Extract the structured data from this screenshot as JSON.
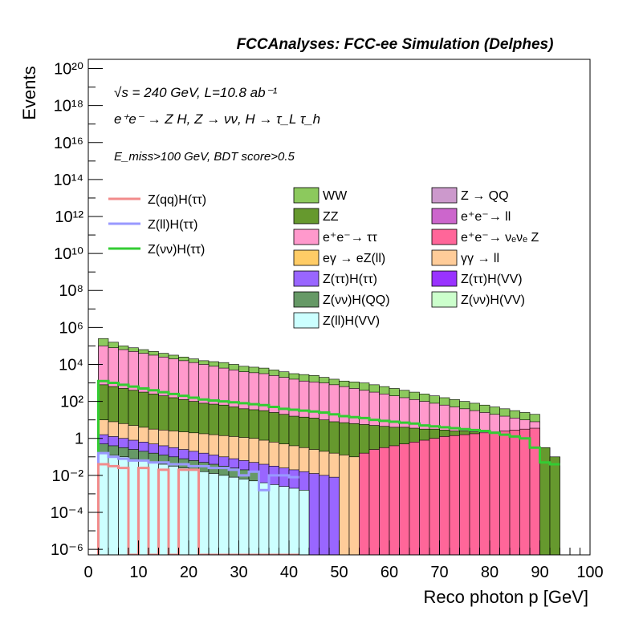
{
  "header": "FCCAnalyses: FCC-ee Simulation (Delphes)",
  "annotations": {
    "energy": "√s = 240 GeV, L=10.8 ab⁻¹",
    "process": "e⁺e⁻ → Z H, Z → νν, H → τ_L τ_h",
    "selection": "E_miss>100 GeV, BDT score>0.5"
  },
  "axes": {
    "xlabel": "Reco photon p [GeV]",
    "ylabel": "Events",
    "xticks": [
      "0",
      "10",
      "20",
      "30",
      "40",
      "50",
      "60",
      "70",
      "80",
      "90",
      "100"
    ],
    "yticks": [
      "10⁻⁶",
      "10⁻⁴",
      "10⁻²",
      "1",
      "10²",
      "10⁴",
      "10⁶",
      "10⁸",
      "10¹⁰",
      "10¹²",
      "10¹⁴",
      "10¹⁶",
      "10¹⁸",
      "10²⁰"
    ]
  },
  "legend": {
    "signals": [
      {
        "label": "Z(qq)H(ττ)",
        "color": "#f28b8b"
      },
      {
        "label": "Z(ll)H(ττ)",
        "color": "#9999ff"
      },
      {
        "label": "Z(νν)H(ττ)",
        "color": "#33cc33"
      }
    ],
    "backgrounds": [
      {
        "label": "WW",
        "color": "#8cc95d"
      },
      {
        "label": "Z → QQ",
        "color": "#cc99cc"
      },
      {
        "label": "ZZ",
        "color": "#66992e"
      },
      {
        "label": "e⁺e⁻→ ll",
        "color": "#cc66cc"
      },
      {
        "label": "e⁺e⁻→ ττ",
        "color": "#ff99cc"
      },
      {
        "label": "e⁺e⁻→ νₑνₑ Z",
        "color": "#ff6699"
      },
      {
        "label": "eγ → eZ(ll)",
        "color": "#ffcc66"
      },
      {
        "label": "γγ → ll",
        "color": "#ffcc99"
      },
      {
        "label": "Z(ττ)H(ττ)",
        "color": "#9966ff"
      },
      {
        "label": "Z(ττ)H(VV)",
        "color": "#9933ff"
      },
      {
        "label": "Z(νν)H(QQ)",
        "color": "#669966"
      },
      {
        "label": "Z(νν)H(VV)",
        "color": "#ccffcc"
      },
      {
        "label": "Z(ll)H(VV)",
        "color": "#ccffff"
      }
    ]
  },
  "chart_data": {
    "type": "stacked-histogram",
    "title": "FCCAnalyses: FCC-ee Simulation (Delphes)",
    "xlabel": "Reco photon p [GeV]",
    "ylabel": "Events",
    "xlim": [
      0,
      100
    ],
    "ylim_log10": [
      -6.3,
      20.5
    ],
    "yscale": "log",
    "bin_width": 2,
    "bin_starts": [
      2,
      4,
      6,
      8,
      10,
      12,
      14,
      16,
      18,
      20,
      22,
      24,
      26,
      28,
      30,
      32,
      34,
      36,
      38,
      40,
      42,
      44,
      46,
      48,
      50,
      52,
      54,
      56,
      58,
      60,
      62,
      64,
      66,
      68,
      70,
      72,
      74,
      76,
      78,
      80,
      82,
      84,
      86,
      88,
      90,
      92
    ],
    "stack_totals_log10": [
      5.4,
      5.2,
      5.0,
      4.9,
      4.8,
      4.7,
      4.6,
      4.5,
      4.4,
      4.3,
      4.2,
      4.15,
      4.1,
      4.0,
      3.9,
      3.85,
      3.8,
      3.7,
      3.6,
      3.5,
      3.45,
      3.4,
      3.3,
      3.2,
      3.1,
      3.05,
      3.0,
      2.9,
      2.8,
      2.7,
      2.6,
      2.5,
      2.4,
      2.3,
      2.2,
      2.1,
      2.0,
      1.9,
      1.8,
      1.7,
      1.6,
      1.5,
      1.4,
      1.3,
      -0.5,
      -1.0
    ],
    "stack_layers_log10": [
      {
        "name": "Z(ll)H(VV)",
        "values": [
          -0.8,
          -0.9,
          -1.0,
          -1.1,
          -1.2,
          -1.3,
          -1.4,
          -1.5,
          -1.6,
          -1.7,
          -1.8,
          -1.9,
          -2.0,
          -2.1,
          -2.2,
          -2.3,
          -2.4,
          -2.5,
          -2.6,
          -2.7,
          -2.8,
          null,
          null,
          null,
          null,
          null,
          null,
          null,
          null,
          null,
          null,
          null,
          null,
          null,
          null,
          null,
          null,
          null,
          null,
          null,
          null,
          null,
          null,
          null,
          null,
          null
        ]
      },
      {
        "name": "Z(νν)H(QQ)",
        "values": [
          -0.3,
          -0.4,
          -0.5,
          -0.6,
          -0.7,
          -0.8,
          -0.9,
          -1.0,
          -1.1,
          -1.2,
          -1.3,
          -1.4,
          -1.5,
          -1.6,
          -1.7,
          -1.8,
          null,
          null,
          null,
          null,
          null,
          null,
          null,
          null,
          null,
          null,
          null,
          null,
          null,
          null,
          null,
          null,
          null,
          null,
          null,
          null,
          null,
          null,
          null,
          null,
          null,
          null,
          null,
          null,
          null,
          null
        ]
      },
      {
        "name": "Z(ττ)H(ττ)",
        "values": [
          0.2,
          0.1,
          0.0,
          -0.1,
          -0.2,
          -0.3,
          -0.4,
          -0.5,
          -0.6,
          -0.7,
          -0.8,
          -0.9,
          -1.0,
          -1.1,
          -1.2,
          -1.3,
          -1.4,
          -1.5,
          -1.6,
          -1.7,
          -1.8,
          -1.9,
          -2.0,
          -2.1,
          null,
          null,
          null,
          null,
          null,
          null,
          null,
          null,
          null,
          null,
          null,
          null,
          null,
          null,
          null,
          null,
          null,
          null,
          null,
          null,
          null,
          null
        ]
      },
      {
        "name": "γγ → ll",
        "values": [
          1.0,
          0.9,
          0.8,
          0.7,
          0.6,
          0.5,
          0.45,
          0.4,
          0.35,
          0.3,
          0.25,
          0.2,
          0.15,
          0.1,
          0.05,
          0.0,
          -0.1,
          -0.2,
          -0.3,
          -0.4,
          -0.5,
          -0.6,
          -0.7,
          -0.8,
          -0.9,
          -1.0,
          null,
          null,
          null,
          null,
          null,
          null,
          null,
          null,
          null,
          null,
          null,
          null,
          null,
          null,
          null,
          null,
          null,
          null,
          null,
          null
        ]
      },
      {
        "name": "e⁺e⁻→ νₑνₑ Z",
        "values": [
          null,
          null,
          null,
          null,
          null,
          null,
          null,
          null,
          null,
          null,
          null,
          null,
          null,
          null,
          null,
          null,
          null,
          null,
          null,
          null,
          null,
          null,
          null,
          -1.6,
          -1.2,
          -1.0,
          -0.8,
          -0.6,
          -0.5,
          -0.4,
          -0.3,
          -0.2,
          -0.1,
          0.0,
          0.1,
          0.15,
          0.2,
          0.25,
          0.3,
          0.35,
          0.4,
          0.45,
          0.5,
          0.55,
          null,
          null
        ]
      },
      {
        "name": "ZZ",
        "values": [
          2.9,
          2.8,
          2.7,
          2.6,
          2.5,
          2.4,
          2.3,
          2.2,
          2.1,
          2.0,
          1.9,
          1.85,
          1.8,
          1.7,
          1.6,
          1.55,
          1.5,
          1.4,
          1.3,
          1.2,
          1.15,
          1.1,
          1.0,
          0.9,
          0.85,
          0.8,
          0.75,
          0.7,
          0.65,
          0.6,
          0.6,
          0.55,
          0.5,
          0.5,
          0.45,
          0.4,
          0.4,
          0.35,
          0.3,
          0.3,
          0.25,
          0.2,
          0.2,
          0.1,
          -0.5,
          -1.0
        ]
      },
      {
        "name": "e⁺e⁻→ ττ",
        "values": [
          5.0,
          4.9,
          4.8,
          4.7,
          4.6,
          4.5,
          4.4,
          4.3,
          4.2,
          4.1,
          4.0,
          3.9,
          3.8,
          3.7,
          3.6,
          3.55,
          3.5,
          3.4,
          3.3,
          3.2,
          3.1,
          3.05,
          3.0,
          2.9,
          2.8,
          2.7,
          2.6,
          2.5,
          2.4,
          2.3,
          2.2,
          2.1,
          2.0,
          1.9,
          1.8,
          1.7,
          1.6,
          1.5,
          1.4,
          1.3,
          1.2,
          1.1,
          1.0,
          0.9,
          null,
          null
        ]
      },
      {
        "name": "WW",
        "values": [
          5.4,
          5.2,
          5.0,
          4.9,
          4.8,
          4.7,
          4.6,
          4.5,
          4.4,
          4.3,
          4.2,
          4.15,
          4.1,
          4.0,
          3.9,
          3.85,
          3.8,
          3.7,
          3.6,
          3.5,
          3.45,
          3.4,
          3.3,
          3.2,
          3.1,
          3.05,
          3.0,
          2.9,
          2.8,
          2.7,
          2.6,
          2.5,
          2.4,
          2.3,
          2.2,
          2.1,
          2.0,
          1.9,
          1.8,
          1.7,
          1.6,
          1.5,
          1.4,
          1.3,
          -0.5,
          -1.0
        ]
      }
    ],
    "signal_lines_log10": [
      {
        "name": "Z(νν)H(ττ)",
        "color": "#33cc33",
        "values": [
          3.1,
          3.0,
          2.9,
          2.8,
          2.7,
          2.6,
          2.5,
          2.4,
          2.3,
          2.2,
          2.1,
          2.05,
          2.0,
          1.95,
          1.9,
          1.85,
          1.8,
          1.7,
          1.6,
          1.55,
          1.5,
          1.45,
          1.4,
          1.3,
          1.2,
          1.15,
          1.1,
          1.0,
          0.95,
          0.9,
          0.85,
          0.8,
          0.7,
          0.65,
          0.6,
          0.55,
          0.5,
          0.45,
          0.4,
          0.3,
          0.2,
          0.1,
          0.0,
          -0.5,
          -1.3,
          -1.4
        ]
      },
      {
        "name": "Z(ll)H(ττ)",
        "color": "#9999ff",
        "values": [
          -0.8,
          -1.0,
          -1.1,
          -1.2,
          -1.2,
          -1.3,
          -1.3,
          -1.4,
          -1.4,
          -1.5,
          -1.5,
          -1.6,
          -1.6,
          -1.7,
          -2.0,
          -1.8,
          -2.8,
          -2.0,
          -2.0,
          -2.1,
          null,
          null,
          null,
          null,
          null,
          null,
          null,
          null,
          null,
          null,
          null,
          null,
          null,
          null,
          null,
          null,
          null,
          null,
          null,
          null,
          null,
          null,
          null,
          null,
          null,
          null
        ]
      },
      {
        "name": "Z(qq)H(ττ)",
        "color": "#f28b8b",
        "values": [
          -1.4,
          -1.5,
          -1.6,
          -6.3,
          -1.6,
          -6.3,
          -1.7,
          -6.3,
          -1.7,
          -1.7,
          -6.3,
          -6.3,
          -6.3,
          -6.3,
          -6.3,
          -6.3,
          -6.3,
          -6.3,
          -6.3,
          -6.3,
          null,
          null,
          null,
          null,
          null,
          null,
          null,
          null,
          null,
          null,
          null,
          null,
          null,
          null,
          null,
          null,
          null,
          null,
          null,
          null,
          null,
          null,
          null,
          null,
          null,
          null
        ]
      }
    ]
  }
}
